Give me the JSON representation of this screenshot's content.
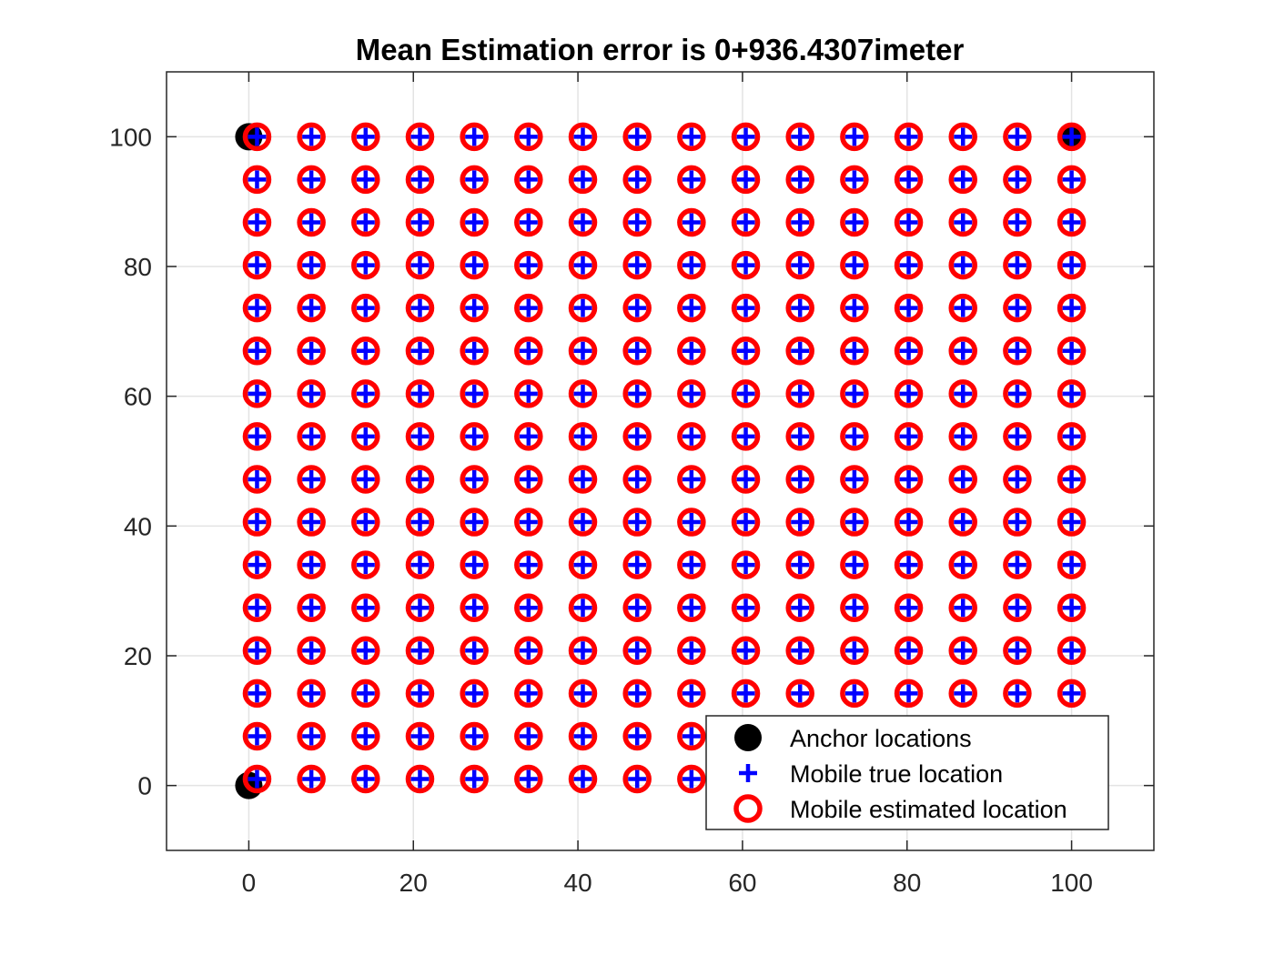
{
  "chart_data": {
    "type": "scatter",
    "title": "Mean Estimation error is 0+936.4307imeter",
    "xlabel": "",
    "ylabel": "",
    "xlim": [
      -10,
      110
    ],
    "ylim": [
      -10,
      110
    ],
    "xticks": [
      0,
      20,
      40,
      60,
      80,
      100
    ],
    "yticks": [
      0,
      20,
      40,
      60,
      80,
      100
    ],
    "grid": true,
    "legend_position": "bottom-right",
    "grid_coords": [
      1,
      7.6,
      14.2,
      20.8,
      27.4,
      34,
      40.6,
      47.2,
      53.8,
      60.4,
      67,
      73.6,
      80.2,
      86.8,
      93.4,
      100
    ],
    "series": [
      {
        "name": "Anchor locations",
        "marker": "filled-circle",
        "color": "#000000",
        "points": [
          [
            0,
            0
          ],
          [
            0,
            100
          ],
          [
            100,
            100
          ]
        ]
      },
      {
        "name": "Mobile true location",
        "marker": "plus",
        "color": "#0000ff",
        "grid_x": [
          1,
          7.6,
          14.2,
          20.8,
          27.4,
          34,
          40.6,
          47.2,
          53.8,
          60.4,
          67,
          73.6,
          80.2,
          86.8,
          93.4,
          100
        ],
        "grid_y": [
          1,
          7.6,
          14.2,
          20.8,
          27.4,
          34,
          40.6,
          47.2,
          53.8,
          60.4,
          67,
          73.6,
          80.2,
          86.8,
          93.4,
          100
        ]
      },
      {
        "name": "Mobile estimated location",
        "marker": "open-circle",
        "color": "#ff0000",
        "grid_x": [
          1,
          7.6,
          14.2,
          20.8,
          27.4,
          34,
          40.6,
          47.2,
          53.8,
          60.4,
          67,
          73.6,
          80.2,
          86.8,
          93.4,
          100
        ],
        "grid_y": [
          1,
          7.6,
          14.2,
          20.8,
          27.4,
          34,
          40.6,
          47.2,
          53.8,
          60.4,
          67,
          73.6,
          80.2,
          86.8,
          93.4,
          100
        ]
      }
    ]
  }
}
